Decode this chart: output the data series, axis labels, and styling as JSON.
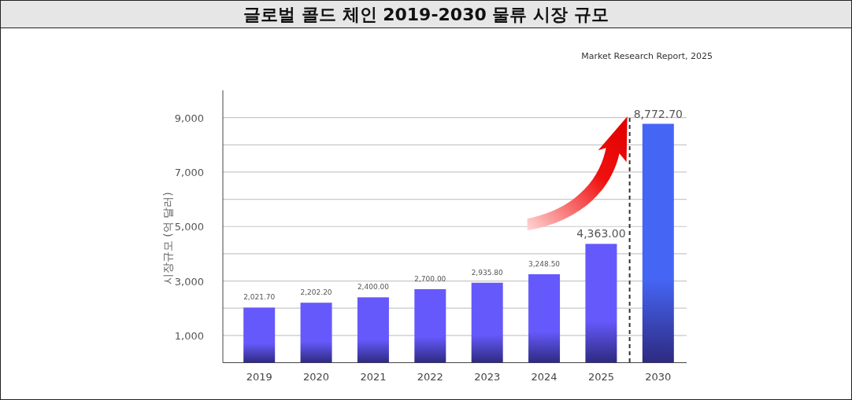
{
  "chart_data": {
    "type": "bar",
    "title": "글로벌 콜드 체인 2019-2030 물류 시장 규모",
    "annotations": [
      "Market Research Report, 2025"
    ],
    "ylabel": "시장규모 (억 달러)",
    "categories": [
      "2019",
      "2020",
      "2021",
      "2022",
      "2023",
      "2024",
      "2025",
      "2030"
    ],
    "values": [
      2021.7,
      2202.2,
      2400.0,
      2700.0,
      2935.8,
      3248.5,
      4363.0,
      8772.7
    ],
    "value_labels": [
      "2,021.70",
      "2,202.20",
      "2,400.00",
      "2,700.00",
      "2,935.80",
      "3,248.50",
      "4,363.00",
      "8,772.70"
    ],
    "colors": [
      "#6559fb",
      "#6559fb",
      "#6559fb",
      "#6559fb",
      "#6559fb",
      "#6559fb",
      "#6559fb",
      "#4565f5"
    ],
    "ylim": [
      0,
      10000
    ],
    "yticks": [
      {
        "value": 1000,
        "label": "1,000"
      },
      {
        "value": 2000,
        "label": null
      },
      {
        "value": 3000,
        "label": "3,000"
      },
      {
        "value": 4000,
        "label": null
      },
      {
        "value": 5000,
        "label": "5,000"
      },
      {
        "value": 6000,
        "label": null
      },
      {
        "value": 7000,
        "label": "7,000"
      },
      {
        "value": 8000,
        "label": null
      },
      {
        "value": 9000,
        "label": "9,000"
      }
    ],
    "grid": "y"
  }
}
